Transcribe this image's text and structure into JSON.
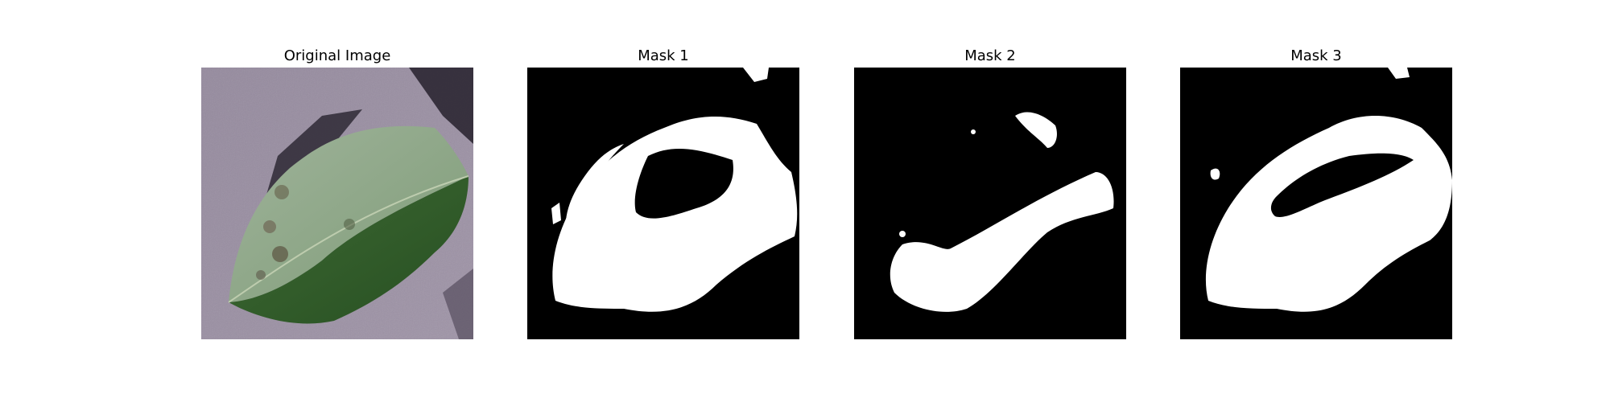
{
  "figure": {
    "panels": [
      {
        "title": "Original Image",
        "kind": "photo",
        "subject": "leaf-photo"
      },
      {
        "title": "Mask 1",
        "kind": "binary-mask",
        "foreground": "#ffffff",
        "background": "#000000"
      },
      {
        "title": "Mask 2",
        "kind": "binary-mask",
        "foreground": "#ffffff",
        "background": "#000000"
      },
      {
        "title": "Mask 3",
        "kind": "binary-mask",
        "foreground": "#ffffff",
        "background": "#000000"
      }
    ]
  }
}
